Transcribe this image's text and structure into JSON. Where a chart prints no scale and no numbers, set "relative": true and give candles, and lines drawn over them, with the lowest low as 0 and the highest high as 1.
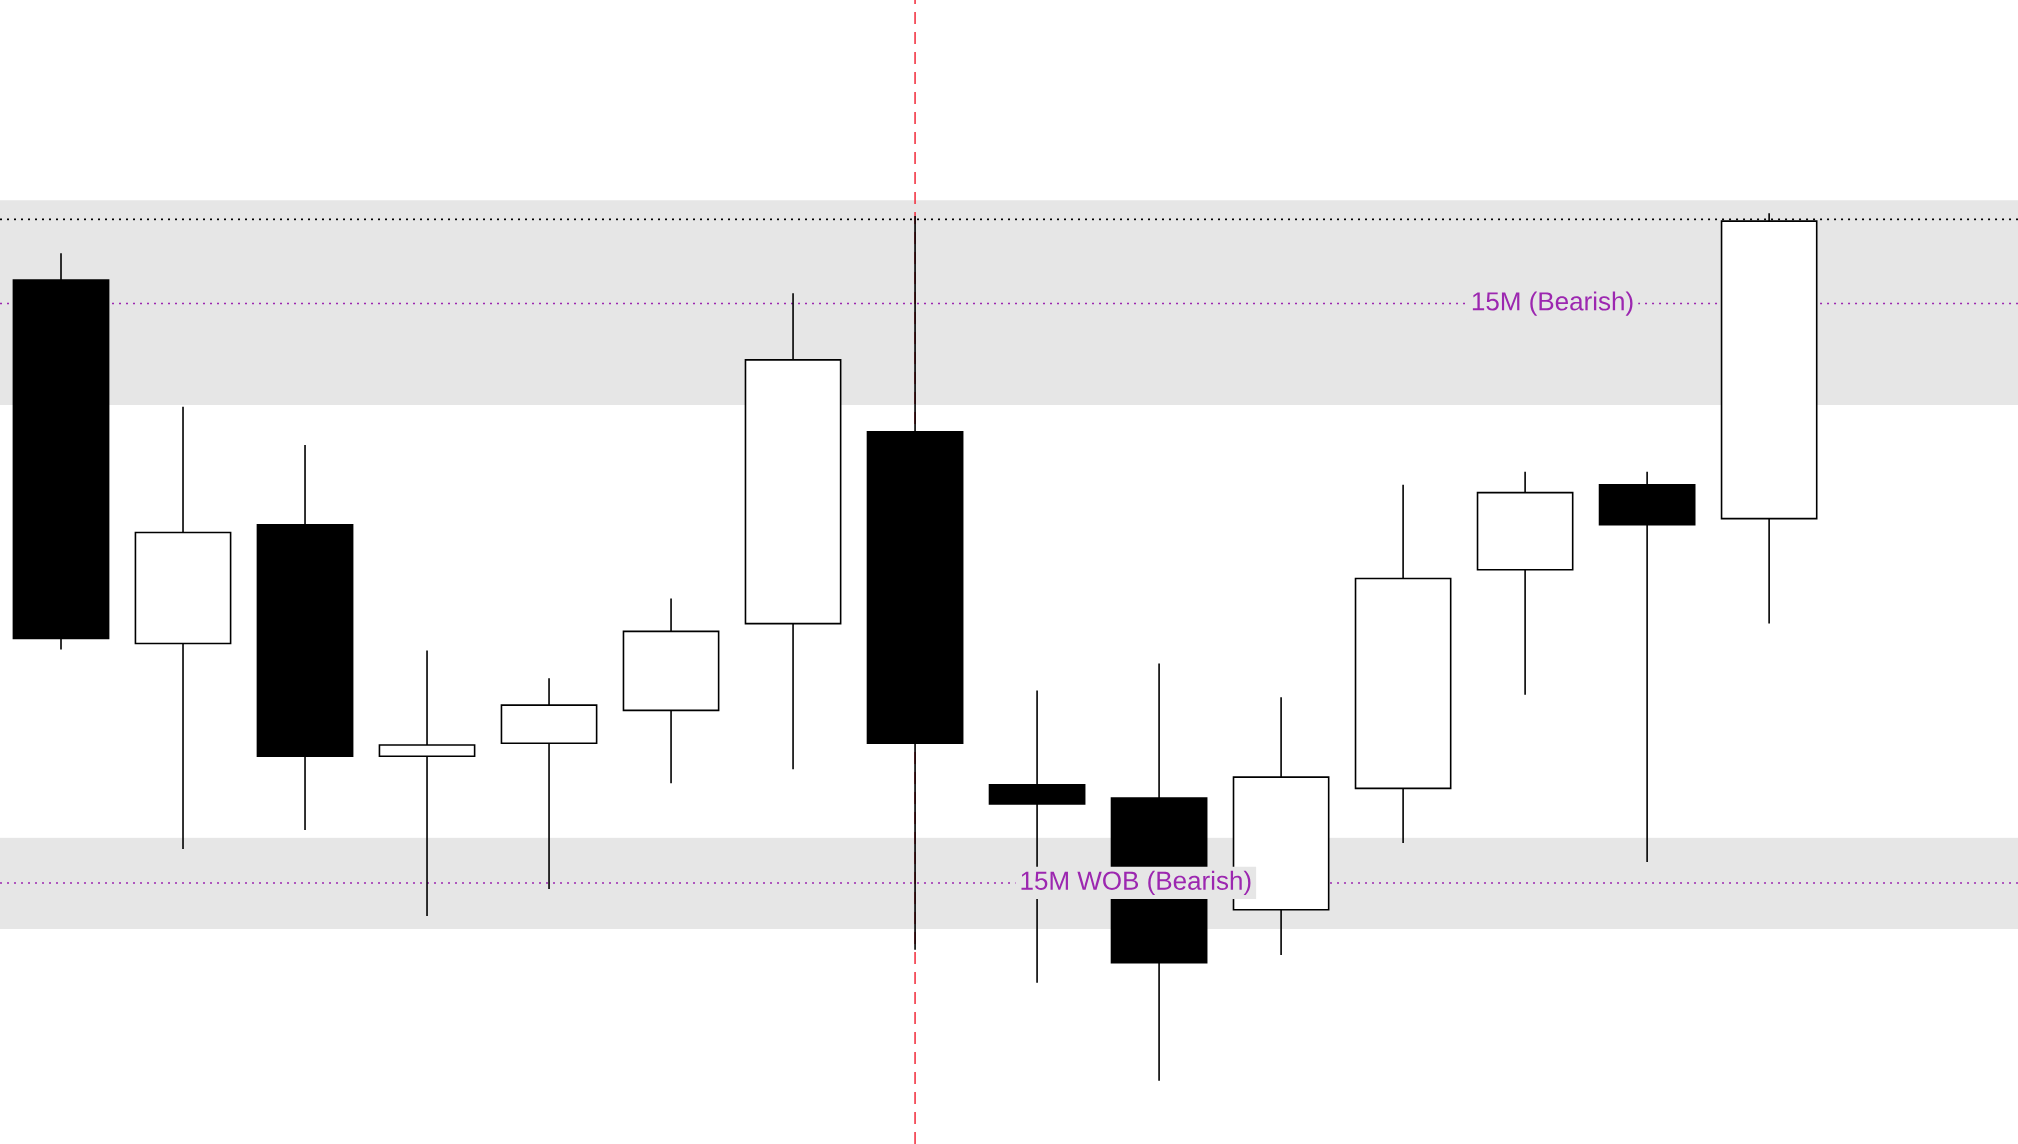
{
  "chart_data": {
    "type": "candlestick",
    "relative": true,
    "categories": [
      null,
      null,
      null,
      null,
      null,
      null,
      null,
      null,
      null,
      null,
      null,
      null,
      null,
      null,
      null
    ],
    "ohlc": [
      [
        0.923,
        0.954,
        0.497,
        0.51
      ],
      [
        0.504,
        0.777,
        0.267,
        0.632
      ],
      [
        0.641,
        0.733,
        0.289,
        0.374
      ],
      [
        0.374,
        0.496,
        0.19,
        0.387
      ],
      [
        0.389,
        0.464,
        0.221,
        0.433
      ],
      [
        0.427,
        0.556,
        0.343,
        0.518
      ],
      [
        0.527,
        0.908,
        0.359,
        0.831
      ],
      [
        0.748,
        0.997,
        0.151,
        0.389
      ],
      [
        0.341,
        0.45,
        0.113,
        0.319
      ],
      [
        0.326,
        0.481,
        0,
        0.136
      ],
      [
        0.197,
        0.442,
        0.145,
        0.35
      ],
      [
        0.337,
        0.687,
        0.274,
        0.579
      ],
      [
        0.589,
        0.702,
        0.445,
        0.678
      ],
      [
        0.687,
        0.702,
        0.252,
        0.641
      ],
      [
        0.648,
        1,
        0.527,
        0.991
      ]
    ],
    "bands": [
      {
        "axis": "y",
        "from": 0.779,
        "to": 1.015,
        "color": "#e6e6e6"
      },
      {
        "axis": "y",
        "from": 0.175,
        "to": 0.28,
        "color": "#e6e6e6"
      }
    ],
    "ref_lines": [
      {
        "axis": "y",
        "value": 0.993,
        "color": "#000000",
        "line_style": "dotted"
      },
      {
        "axis": "y",
        "value": 0.896,
        "color": "#9c27b0",
        "line_style": "dotted",
        "label": "15M (Bearish)"
      },
      {
        "axis": "y",
        "value": 0.228,
        "color": "#9c27b0",
        "line_style": "dotted",
        "label": "15M WOB (Bearish)"
      }
    ]
  }
}
